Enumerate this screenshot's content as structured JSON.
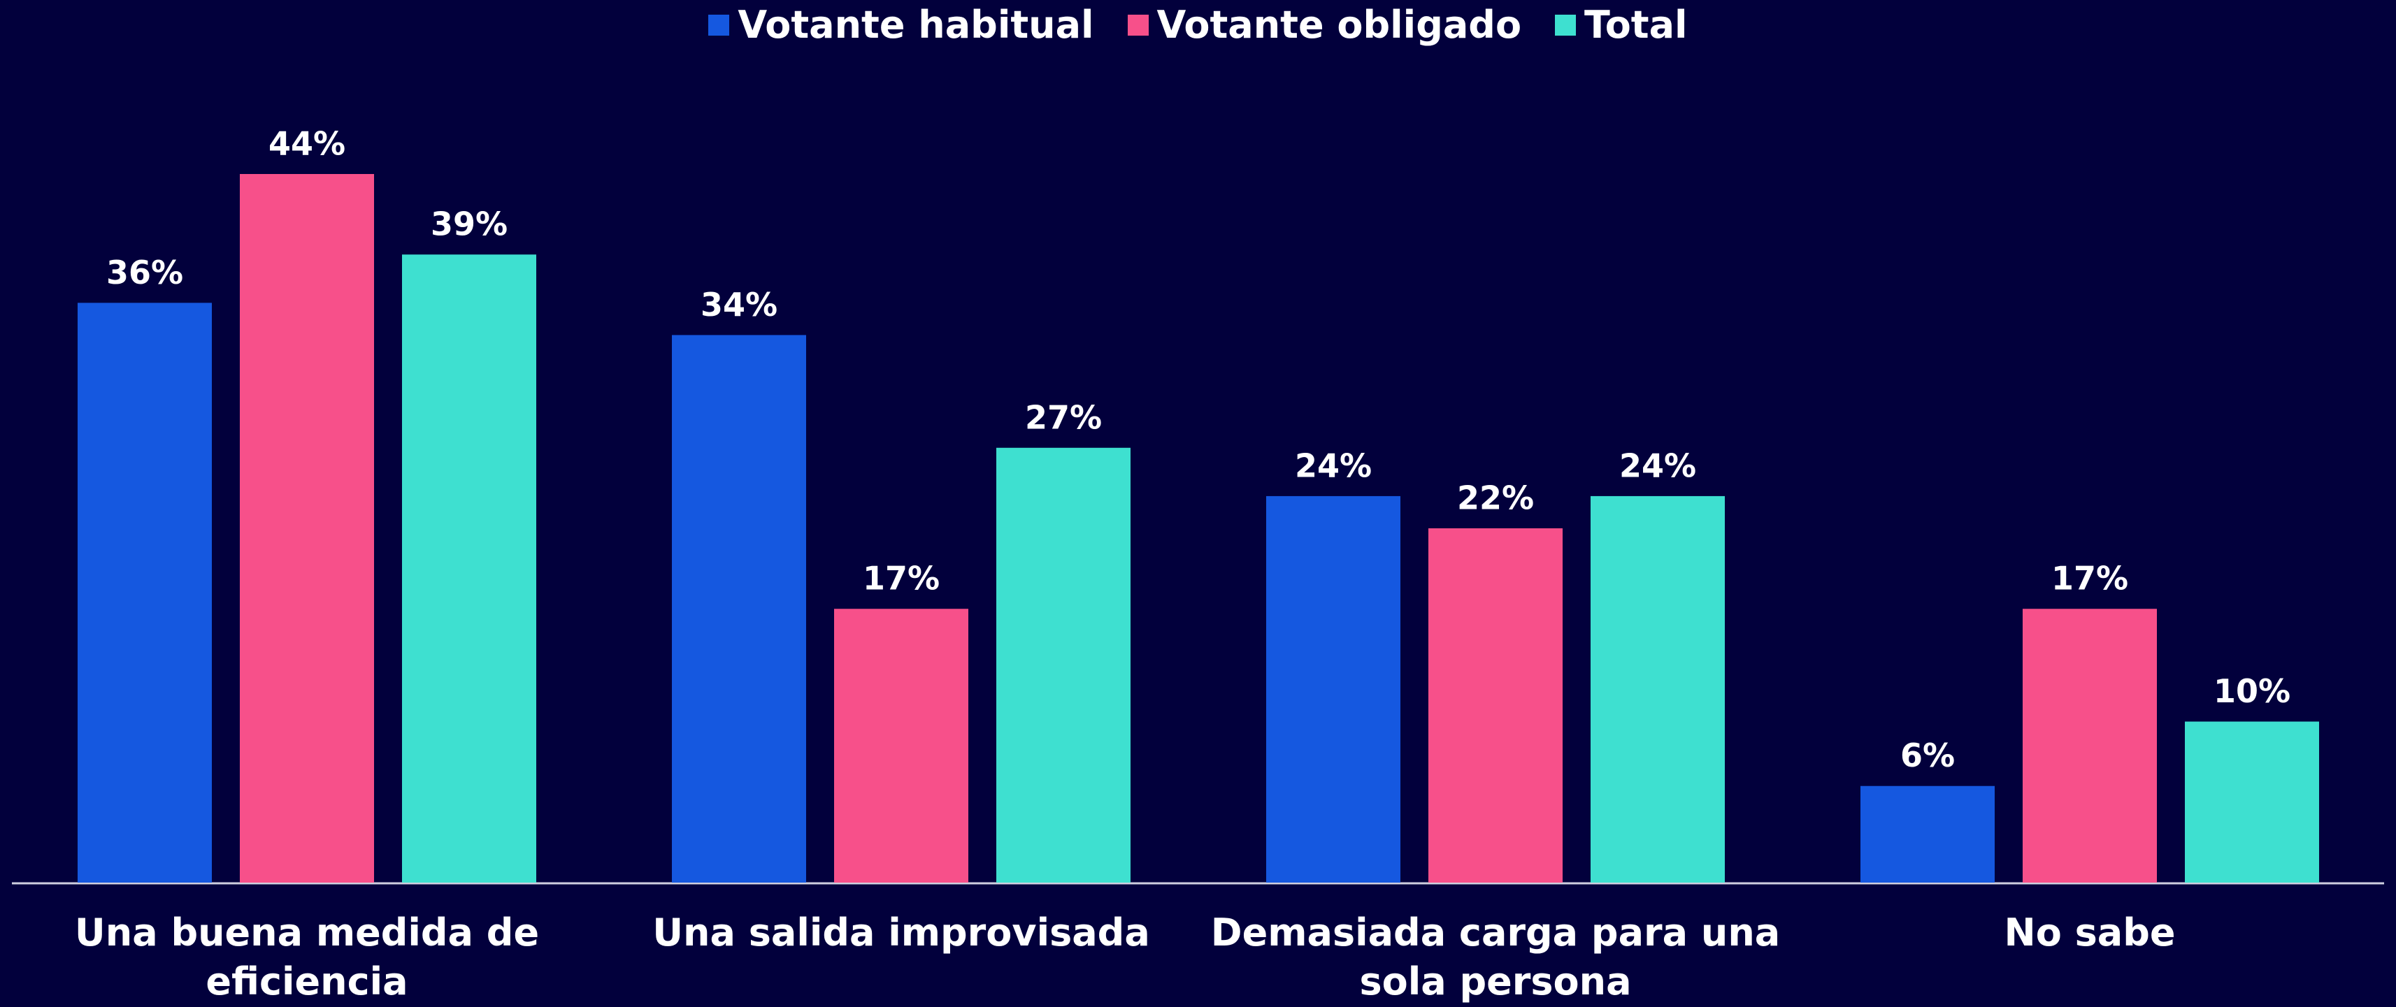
{
  "chart_data": {
    "type": "bar",
    "categories": [
      "Una buena medida de eficiencia",
      "Una salida improvisada",
      "Demasiada carga para una sola persona",
      "No sabe"
    ],
    "series": [
      {
        "name": "Votante habitual",
        "color": "#1558e0",
        "values": [
          36,
          34,
          24,
          6
        ],
        "value_labels": [
          "36%",
          "34%",
          "24%",
          "6%"
        ]
      },
      {
        "name": "Votante obligado",
        "color": "#f7508a",
        "values": [
          44,
          17,
          22,
          17
        ],
        "value_labels": [
          "44%",
          "17%",
          "22%",
          "17%"
        ]
      },
      {
        "name": "Total",
        "color": "#3ee0d0",
        "values": [
          39,
          27,
          24,
          10
        ],
        "value_labels": [
          "39%",
          "27%",
          "24%",
          "10%"
        ]
      }
    ],
    "ylim": [
      0,
      44
    ],
    "legend": "top"
  }
}
